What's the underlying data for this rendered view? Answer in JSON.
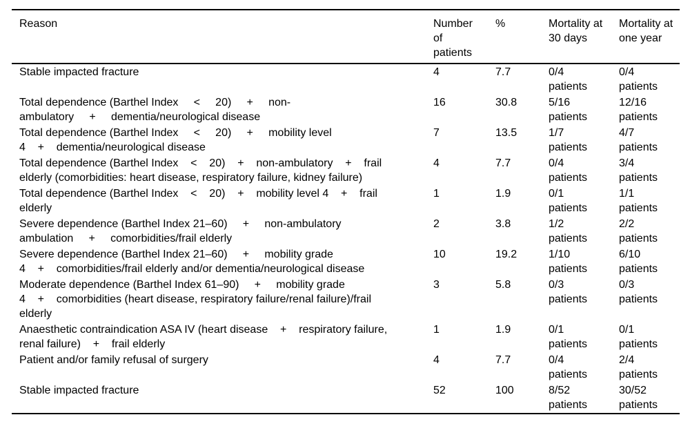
{
  "colors": {
    "background": "#ffffff",
    "text": "#000000",
    "rule": "#000000"
  },
  "table": {
    "columns": [
      {
        "key": "reason",
        "label_lines": [
          "Reason"
        ]
      },
      {
        "key": "patients",
        "label_lines": [
          "Number",
          "of",
          "patients"
        ]
      },
      {
        "key": "percent",
        "label_lines": [
          "%"
        ]
      },
      {
        "key": "mortality30",
        "label_lines": [
          "Mortality at",
          "30 days"
        ]
      },
      {
        "key": "mortality1y",
        "label_lines": [
          "Mortality at",
          "one year"
        ]
      }
    ],
    "rows": [
      {
        "reason_lines": [
          "Stable impacted fracture"
        ],
        "patients": "4",
        "percent": "7.7",
        "mortality30_lines": [
          "0/4",
          "patients"
        ],
        "mortality1y_lines": [
          "0/4",
          "patients"
        ]
      },
      {
        "reason_lines": [
          "Total dependence (Barthel Index     <     20)     +     non-",
          "ambulatory     +     dementia/neurological disease"
        ],
        "patients": "16",
        "percent": "30.8",
        "mortality30_lines": [
          "5/16",
          "patients"
        ],
        "mortality1y_lines": [
          "12/16",
          "patients"
        ]
      },
      {
        "reason_lines": [
          "Total dependence (Barthel Index     <     20)     +     mobility level",
          "4    +    dementia/neurological disease"
        ],
        "patients": "7",
        "percent": "13.5",
        "mortality30_lines": [
          "1/7",
          "patients"
        ],
        "mortality1y_lines": [
          "4/7",
          "patients"
        ]
      },
      {
        "reason_lines": [
          "Total dependence (Barthel Index    <    20)    +    non-ambulatory    +    frail",
          "elderly (comorbidities: heart disease, respiratory failure, kidney failure)"
        ],
        "patients": "4",
        "percent": "7.7",
        "mortality30_lines": [
          "0/4",
          "patients"
        ],
        "mortality1y_lines": [
          "3/4",
          "patients"
        ]
      },
      {
        "reason_lines": [
          "Total dependence (Barthel Index    <    20)    +    mobility level 4    +    frail",
          "elderly"
        ],
        "patients": "1",
        "percent": "1.9",
        "mortality30_lines": [
          "0/1",
          "patients"
        ],
        "mortality1y_lines": [
          "1/1",
          "patients"
        ]
      },
      {
        "reason_lines": [
          "Severe dependence (Barthel Index 21–60)     +     non-ambulatory",
          "ambulation     +     comorbidities/frail elderly"
        ],
        "patients": "2",
        "percent": "3.8",
        "mortality30_lines": [
          "1/2",
          "patients"
        ],
        "mortality1y_lines": [
          "2/2",
          "patients"
        ]
      },
      {
        "reason_lines": [
          "Severe dependence (Barthel Index 21–60)     +     mobility grade",
          "4    +    comorbidities/frail elderly and/or dementia/neurological disease"
        ],
        "patients": "10",
        "percent": "19.2",
        "mortality30_lines": [
          "1/10",
          "patients"
        ],
        "mortality1y_lines": [
          "6/10",
          "patients"
        ]
      },
      {
        "reason_lines": [
          "Moderate dependence (Barthel Index 61–90)     +     mobility grade",
          "4    +    comorbidities (heart disease, respiratory failure/renal failure)/frail",
          "elderly"
        ],
        "patients": "3",
        "percent": "5.8",
        "mortality30_lines": [
          "0/3",
          "patients"
        ],
        "mortality1y_lines": [
          "0/3",
          "patients"
        ]
      },
      {
        "reason_lines": [
          "Anaesthetic contraindication ASA IV (heart disease    +    respiratory failure,",
          "renal failure)    +    frail elderly"
        ],
        "patients": "1",
        "percent": "1.9",
        "mortality30_lines": [
          "0/1",
          "patients"
        ],
        "mortality1y_lines": [
          "0/1",
          "patients"
        ]
      },
      {
        "reason_lines": [
          "Patient and/or family refusal of surgery"
        ],
        "patients": "4",
        "percent": "7.7",
        "mortality30_lines": [
          "0/4",
          "patients"
        ],
        "mortality1y_lines": [
          "2/4",
          "patients"
        ]
      },
      {
        "reason_lines": [
          "Stable impacted fracture"
        ],
        "patients": "52",
        "percent": "100",
        "mortality30_lines": [
          "8/52",
          "patients"
        ],
        "mortality1y_lines": [
          "30/52",
          "patients"
        ]
      }
    ]
  }
}
